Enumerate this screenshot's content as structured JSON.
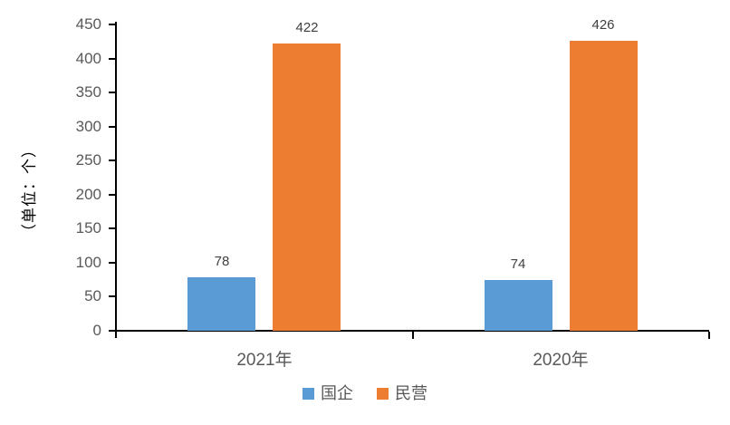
{
  "chart_data": {
    "type": "bar",
    "title": "",
    "categories": [
      "2021年",
      "2020年"
    ],
    "series": [
      {
        "name": "国企",
        "color": "#5B9BD5",
        "values": [
          78,
          74
        ]
      },
      {
        "name": "民营",
        "color": "#ED7D31",
        "values": [
          422,
          426
        ]
      }
    ],
    "ylabel": "（单位：个）",
    "xlabel": "",
    "ylim": [
      0,
      450
    ],
    "ytick_step": 50,
    "yticks": [
      0,
      50,
      100,
      150,
      200,
      250,
      300,
      350,
      400,
      450
    ],
    "grid": false,
    "legend_position": "bottom",
    "data_labels": true
  },
  "colors": {
    "axis_line": "#000000",
    "tick_label": "#595959",
    "category_label": "#595959",
    "value_label": "#404040",
    "legend_text": "#595959",
    "background": "#ffffff"
  }
}
